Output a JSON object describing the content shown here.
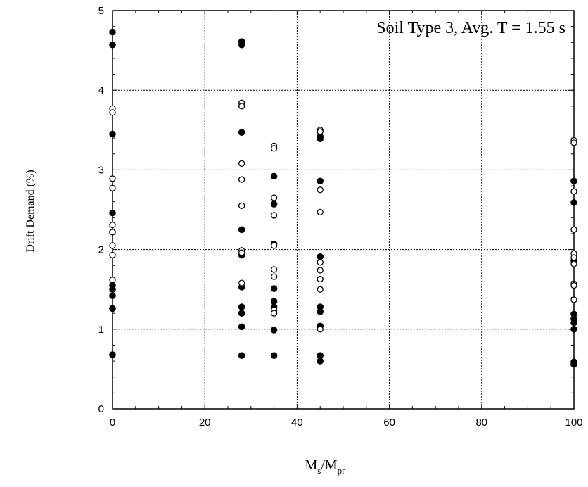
{
  "chart_data": {
    "type": "scatter",
    "annotation": "Soil Type 3, Avg. T = 1.55 s",
    "ylabel": "Drift Demand (%)",
    "xlabel": {
      "main1": "M",
      "sub1": "s",
      "main2": "/M",
      "sub2": "pr"
    },
    "xlim": [
      0,
      100
    ],
    "ylim": [
      0,
      5
    ],
    "x_ticks": [
      0,
      20,
      40,
      60,
      80,
      100
    ],
    "y_ticks": [
      0,
      1,
      2,
      3,
      4,
      5
    ],
    "grid": true,
    "series": [
      {
        "marker": "filled-circle",
        "points": [
          [
            0,
            4.73
          ],
          [
            0,
            4.57
          ],
          [
            0,
            3.45
          ],
          [
            0,
            2.46
          ],
          [
            0,
            2.22
          ],
          [
            0,
            1.55
          ],
          [
            0,
            1.5
          ],
          [
            0,
            1.42
          ],
          [
            0,
            1.26
          ],
          [
            0,
            0.68
          ],
          [
            28,
            4.61
          ],
          [
            28,
            4.57
          ],
          [
            28,
            3.47
          ],
          [
            28,
            2.25
          ],
          [
            28,
            1.93
          ],
          [
            28,
            1.53
          ],
          [
            28,
            1.28
          ],
          [
            28,
            1.2
          ],
          [
            28,
            1.03
          ],
          [
            28,
            0.67
          ],
          [
            35,
            2.92
          ],
          [
            35,
            2.57
          ],
          [
            35,
            2.07
          ],
          [
            35,
            1.51
          ],
          [
            35,
            1.35
          ],
          [
            35,
            1.28
          ],
          [
            35,
            0.99
          ],
          [
            35,
            0.67
          ],
          [
            45,
            3.42
          ],
          [
            45,
            3.39
          ],
          [
            45,
            2.86
          ],
          [
            45,
            1.91
          ],
          [
            45,
            1.28
          ],
          [
            45,
            1.22
          ],
          [
            45,
            1.04
          ],
          [
            45,
            0.67
          ],
          [
            45,
            0.6
          ],
          [
            100,
            2.86
          ],
          [
            100,
            2.59
          ],
          [
            100,
            1.86
          ],
          [
            100,
            1.19
          ],
          [
            100,
            1.13
          ],
          [
            100,
            1.08
          ],
          [
            100,
            1.0
          ],
          [
            100,
            0.59
          ],
          [
            100,
            0.56
          ]
        ]
      },
      {
        "marker": "open-circle",
        "points": [
          [
            0,
            3.77
          ],
          [
            0,
            3.72
          ],
          [
            0,
            2.89
          ],
          [
            0,
            2.77
          ],
          [
            0,
            2.31
          ],
          [
            0,
            2.22
          ],
          [
            0,
            2.05
          ],
          [
            0,
            1.93
          ],
          [
            0,
            1.62
          ],
          [
            28,
            3.84
          ],
          [
            28,
            3.8
          ],
          [
            28,
            3.08
          ],
          [
            28,
            2.88
          ],
          [
            28,
            2.55
          ],
          [
            28,
            1.99
          ],
          [
            28,
            1.96
          ],
          [
            28,
            1.58
          ],
          [
            35,
            3.3
          ],
          [
            35,
            3.27
          ],
          [
            35,
            2.65
          ],
          [
            35,
            2.43
          ],
          [
            35,
            2.05
          ],
          [
            35,
            1.75
          ],
          [
            35,
            1.66
          ],
          [
            35,
            1.24
          ],
          [
            35,
            1.2
          ],
          [
            45,
            3.5
          ],
          [
            45,
            3.48
          ],
          [
            45,
            2.75
          ],
          [
            45,
            2.47
          ],
          [
            45,
            1.84
          ],
          [
            45,
            1.74
          ],
          [
            45,
            1.63
          ],
          [
            45,
            1.5
          ],
          [
            45,
            1.0
          ],
          [
            100,
            3.37
          ],
          [
            100,
            3.34
          ],
          [
            100,
            2.73
          ],
          [
            100,
            2.25
          ],
          [
            100,
            1.95
          ],
          [
            100,
            1.9
          ],
          [
            100,
            1.82
          ],
          [
            100,
            1.57
          ],
          [
            100,
            1.55
          ],
          [
            100,
            1.37
          ]
        ]
      }
    ]
  }
}
